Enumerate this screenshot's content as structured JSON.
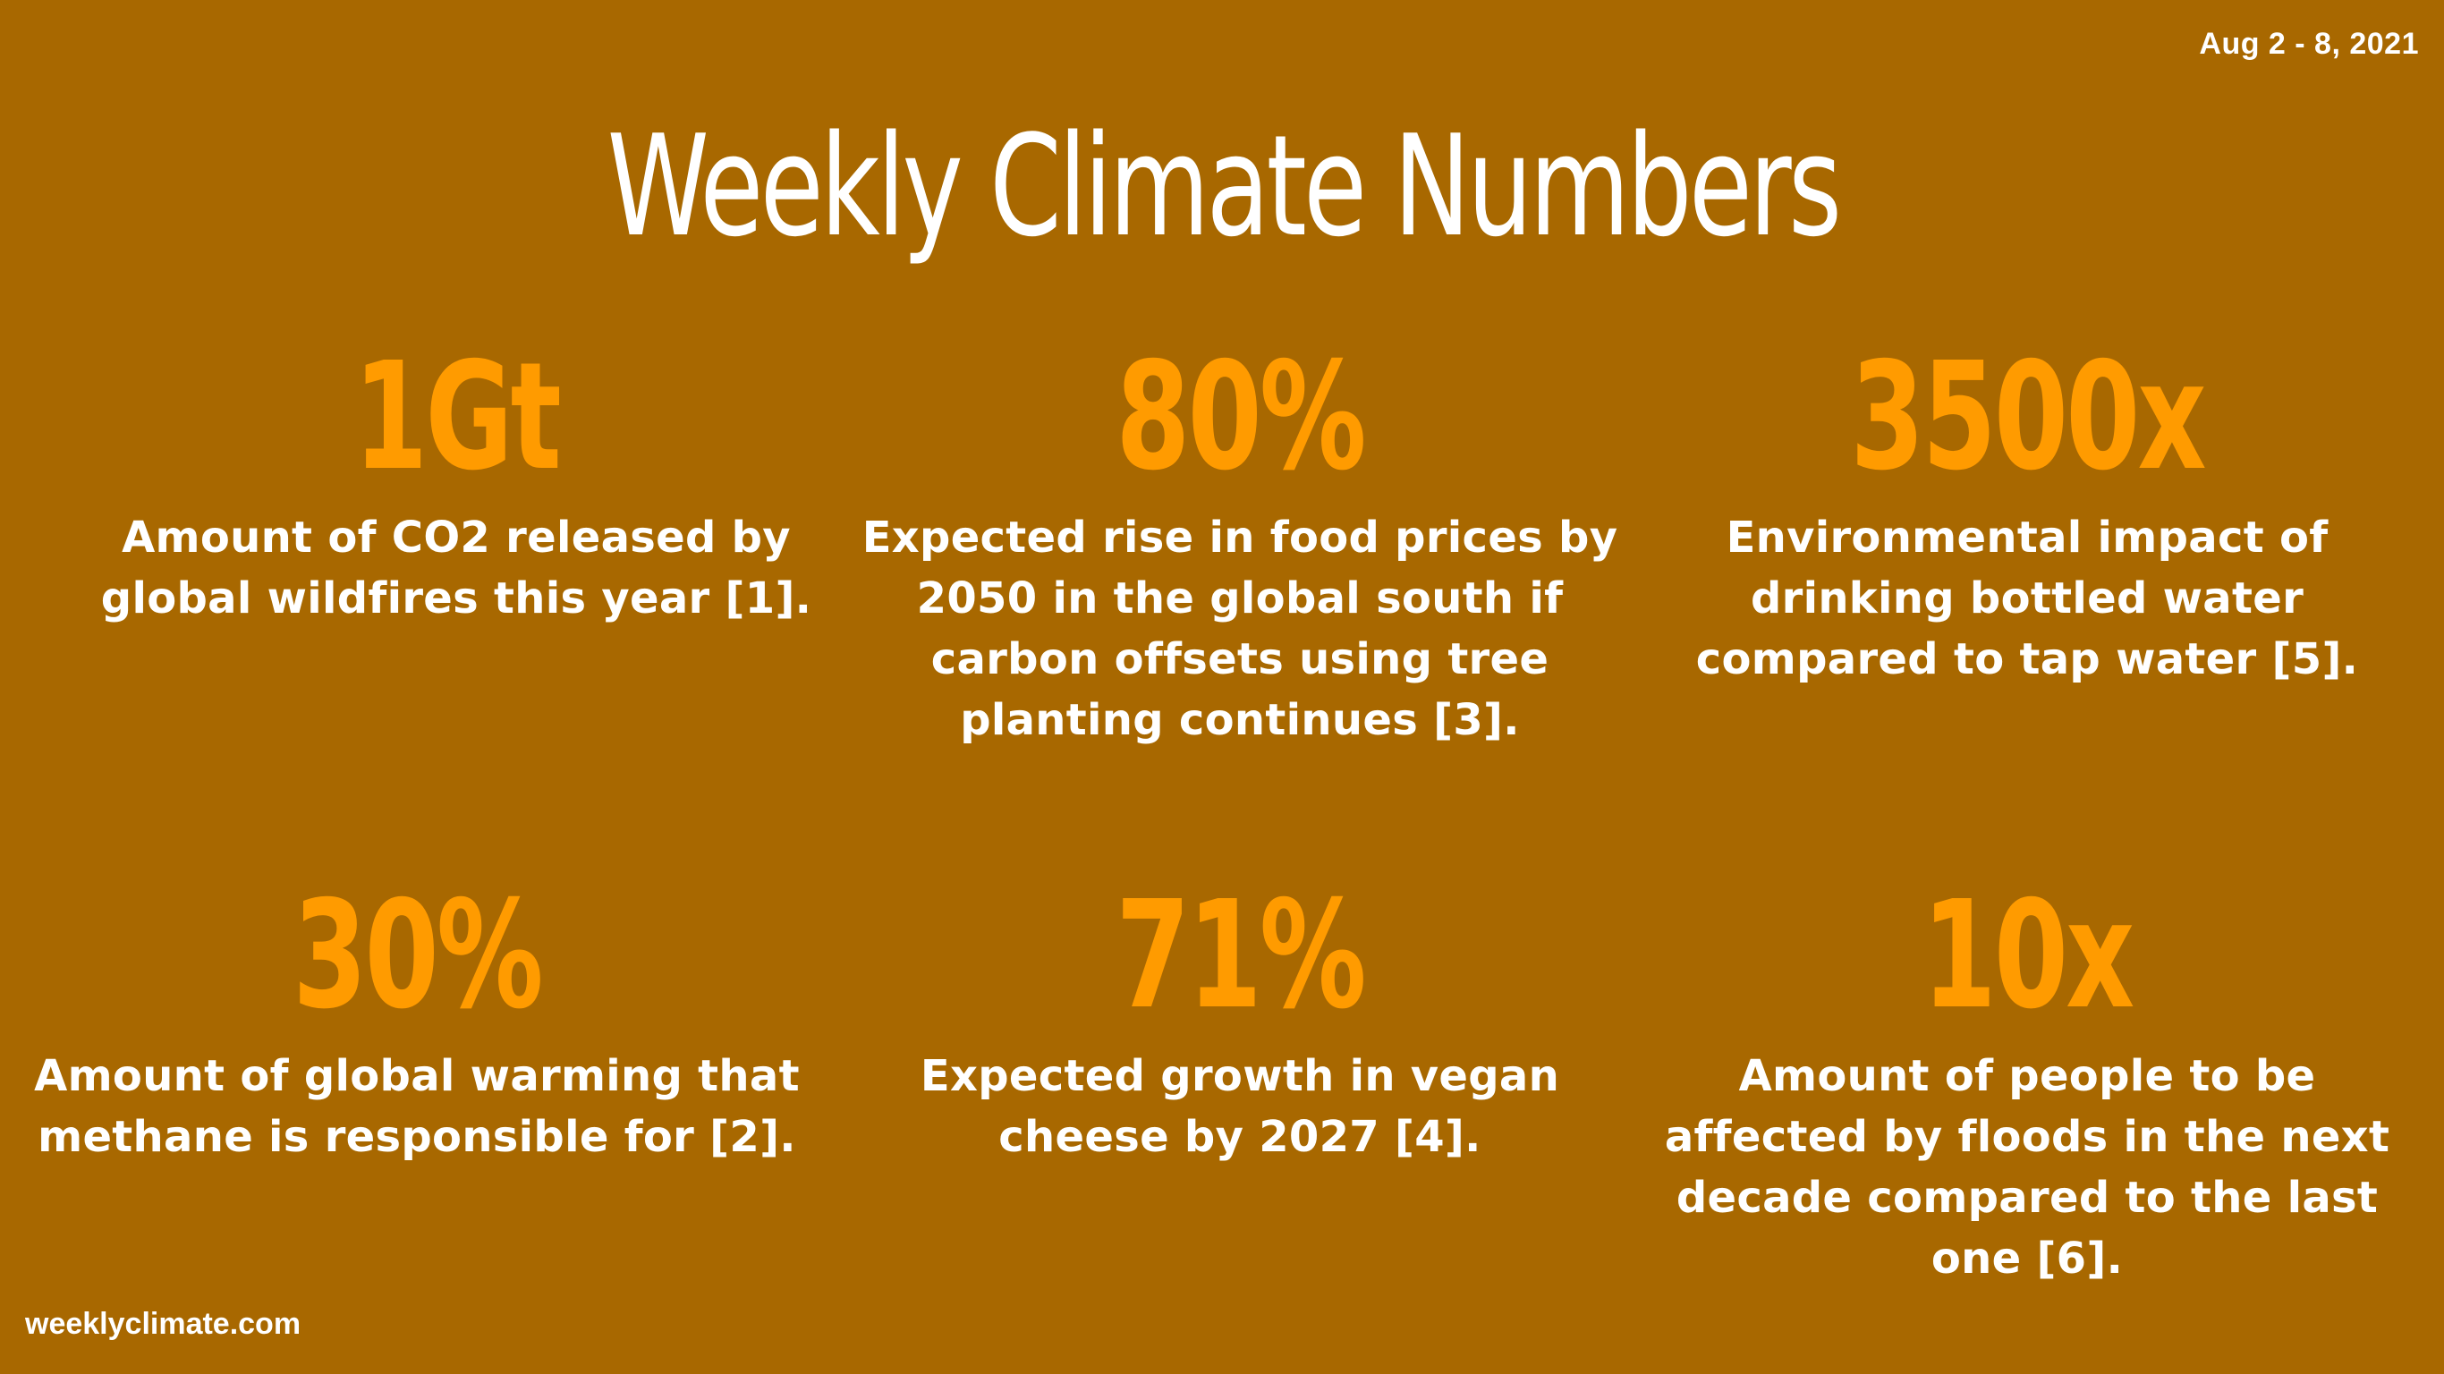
{
  "date_range": "Aug 2 - 8, 2021",
  "title": "Weekly Climate Numbers",
  "stats": [
    {
      "number": "1Gt",
      "description": "Amount of CO2 released by global wildfires this year [1]."
    },
    {
      "number": "80%",
      "description": "Expected rise in food prices by 2050 in the global south if carbon offsets using tree planting continues [3]."
    },
    {
      "number": "3500x",
      "description": "Environmental impact of drinking bottled water compared to tap water [5]."
    },
    {
      "number": "30%",
      "description": "Amount of global warming that methane is responsible for [2]."
    },
    {
      "number": "71%",
      "description": "Expected growth in vegan cheese by 2027 [4]."
    },
    {
      "number": "10x",
      "description": "Amount of people to be affected by floods in the next decade compared to the last one [6]."
    }
  ],
  "footer": "weeklyclimate.com",
  "colors": {
    "background": "#a86800",
    "number": "#ff9b00",
    "text": "#ffffff"
  }
}
